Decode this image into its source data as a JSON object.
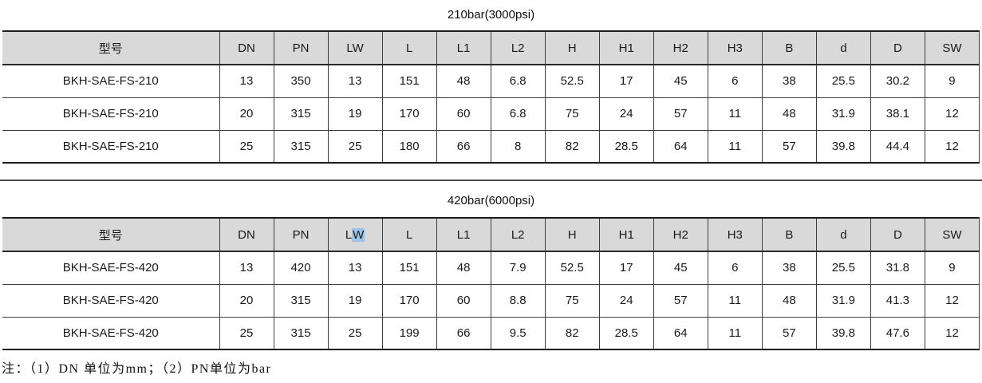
{
  "colors": {
    "header_bg": "#d9d9d9",
    "border_thin": "#3d3d3d",
    "border_thick": "#1e1e1e",
    "selection_highlight": "#9dc4e4",
    "text": "#1a1a1a"
  },
  "tables": [
    {
      "title": "210bar(3000psi)",
      "columns": [
        "型号",
        "DN",
        "PN",
        "LW",
        "L",
        "L1",
        "L2",
        "H",
        "H1",
        "H2",
        "H3",
        "B",
        "d",
        "D",
        "SW"
      ],
      "rows": [
        [
          "BKH-SAE-FS-210",
          "13",
          "350",
          "13",
          "151",
          "48",
          "6.8",
          "52.5",
          "17",
          "45",
          "6",
          "38",
          "25.5",
          "30.2",
          "9"
        ],
        [
          "BKH-SAE-FS-210",
          "20",
          "315",
          "19",
          "170",
          "60",
          "6.8",
          "75",
          "24",
          "57",
          "11",
          "48",
          "31.9",
          "38.1",
          "12"
        ],
        [
          "BKH-SAE-FS-210",
          "25",
          "315",
          "25",
          "180",
          "66",
          "8",
          "82",
          "28.5",
          "64",
          "11",
          "57",
          "39.8",
          "44.4",
          "12"
        ]
      ]
    },
    {
      "title": "420bar(6000psi)",
      "columns": [
        "型号",
        "DN",
        "PN",
        "LW",
        "L",
        "L1",
        "L2",
        "H",
        "H1",
        "H2",
        "H3",
        "B",
        "d",
        "D",
        "SW"
      ],
      "highlight": {
        "col_index": 3,
        "prefix": "L",
        "selected": "W"
      },
      "rows": [
        [
          "BKH-SAE-FS-420",
          "13",
          "420",
          "13",
          "151",
          "48",
          "7.9",
          "52.5",
          "17",
          "45",
          "6",
          "38",
          "25.5",
          "31.8",
          "9"
        ],
        [
          "BKH-SAE-FS-420",
          "20",
          "315",
          "19",
          "170",
          "60",
          "8.8",
          "75",
          "24",
          "57",
          "11",
          "48",
          "31.9",
          "41.3",
          "12"
        ],
        [
          "BKH-SAE-FS-420",
          "25",
          "315",
          "25",
          "199",
          "66",
          "9.5",
          "82",
          "28.5",
          "64",
          "11",
          "57",
          "39.8",
          "47.6",
          "12"
        ]
      ]
    }
  ],
  "note": "注：（1）DN 单位为mm；（2）PN单位为bar"
}
